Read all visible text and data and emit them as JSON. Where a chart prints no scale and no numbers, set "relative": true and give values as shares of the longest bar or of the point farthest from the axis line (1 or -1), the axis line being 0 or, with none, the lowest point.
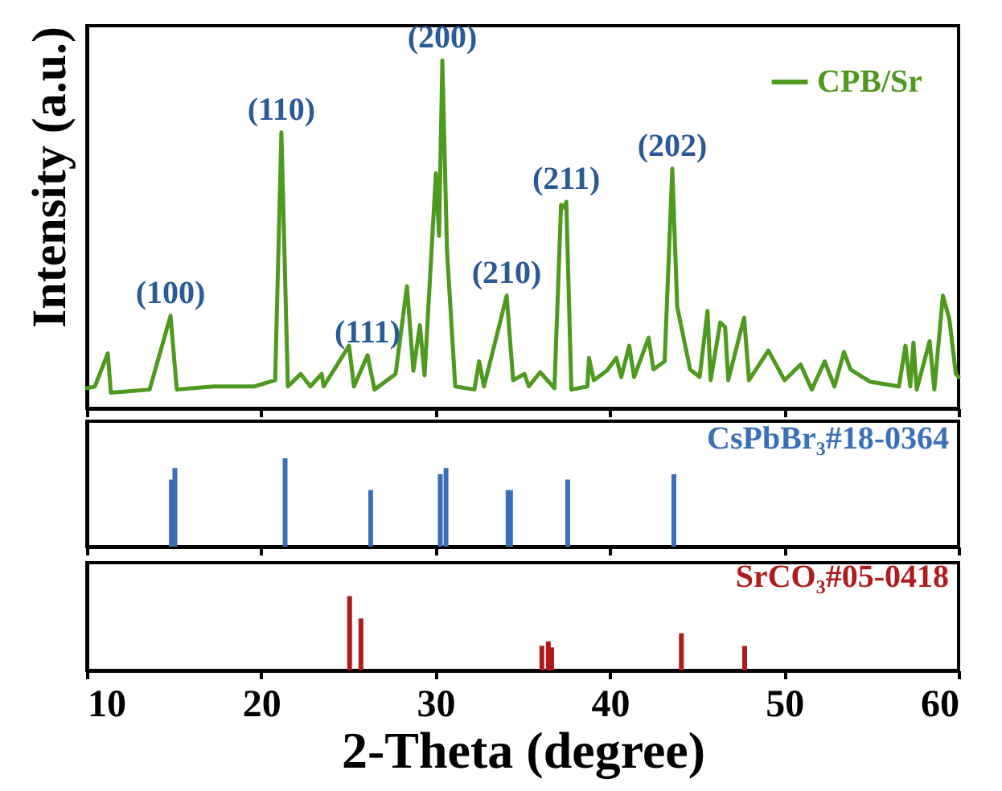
{
  "chart_data": [
    {
      "type": "line",
      "relative": true,
      "ylabel": "Intensity (a.u.)",
      "xlim": [
        10,
        60
      ],
      "xticks": [
        10,
        20,
        30,
        40,
        50,
        60
      ],
      "tick_labels": false,
      "legend": "top right",
      "series": [
        {
          "name": "CPB/Sr",
          "color": "#4e9a1f",
          "x": [
            10.0,
            10.46,
            11.2,
            11.38,
            13.6,
            14.8,
            15.16,
            17.3,
            19.6,
            20.8,
            21.16,
            21.53,
            22.27,
            22.82,
            23.47,
            23.58,
            25.04,
            25.32,
            26.1,
            26.5,
            27.71,
            28.36,
            28.73,
            29.1,
            29.37,
            30.02,
            30.2,
            30.39,
            30.66,
            31.13,
            32.23,
            32.5,
            32.78,
            34.08,
            34.45,
            35.1,
            35.35,
            36.0,
            36.82,
            37.2,
            37.38,
            37.5,
            37.79,
            38.71,
            38.8,
            39.08,
            39.82,
            40.37,
            40.65,
            41.11,
            41.39,
            42.22,
            42.5,
            43.14,
            43.58,
            43.86,
            44.6,
            45.15,
            45.6,
            45.78,
            46.33,
            46.61,
            46.79,
            47.7,
            47.98,
            49.09,
            50.02,
            50.94,
            51.58,
            52.32,
            52.88,
            53.43,
            53.8,
            54.9,
            56.58,
            56.95,
            57.23,
            57.41,
            57.6,
            58.34,
            58.61,
            59.1,
            59.47,
            59.84,
            60.0
          ],
          "values": [
            0.058,
            0.063,
            0.158,
            0.045,
            0.054,
            0.266,
            0.054,
            0.063,
            0.063,
            0.081,
            0.793,
            0.063,
            0.099,
            0.063,
            0.099,
            0.063,
            0.18,
            0.063,
            0.153,
            0.054,
            0.099,
            0.351,
            0.108,
            0.239,
            0.095,
            0.676,
            0.496,
            1.0,
            0.45,
            0.063,
            0.054,
            0.135,
            0.063,
            0.324,
            0.081,
            0.099,
            0.063,
            0.104,
            0.058,
            0.585,
            0.577,
            0.594,
            0.054,
            0.063,
            0.145,
            0.081,
            0.108,
            0.145,
            0.09,
            0.18,
            0.09,
            0.203,
            0.112,
            0.135,
            0.689,
            0.293,
            0.112,
            0.09,
            0.28,
            0.081,
            0.247,
            0.234,
            0.081,
            0.261,
            0.081,
            0.166,
            0.081,
            0.126,
            0.054,
            0.135,
            0.063,
            0.162,
            0.112,
            0.077,
            0.063,
            0.18,
            0.063,
            0.189,
            0.054,
            0.193,
            0.054,
            0.324,
            0.257,
            0.099,
            0.09
          ]
        }
      ],
      "annotations": [
        {
          "text": "(100)",
          "x": 14.8,
          "y": 0.266
        },
        {
          "text": "(110)",
          "x": 21.16,
          "y": 0.793
        },
        {
          "text": "(111)",
          "x": 26.1,
          "y": 0.153
        },
        {
          "text": "(200)",
          "x": 30.39,
          "y": 1.0
        },
        {
          "text": "(210)",
          "x": 34.08,
          "y": 0.324
        },
        {
          "text": "(211)",
          "x": 37.5,
          "y": 0.594
        },
        {
          "text": "(202)",
          "x": 43.58,
          "y": 0.689
        }
      ]
    },
    {
      "type": "bar",
      "relative": true,
      "xlim": [
        10,
        60
      ],
      "xticks": [
        10,
        20,
        30,
        40,
        50,
        60
      ],
      "tick_labels": false,
      "series": [
        {
          "name": "CsPbBr₃#18-0364",
          "color": "#3a70b8",
          "x": [
            14.85,
            15.05,
            21.37,
            26.28,
            30.27,
            30.6,
            34.16,
            34.3,
            37.58,
            43.67
          ],
          "values": [
            0.76,
            0.89,
            1.0,
            0.64,
            0.82,
            0.89,
            0.64,
            0.64,
            0.76,
            0.82
          ]
        }
      ]
    },
    {
      "type": "bar",
      "relative": true,
      "xlabel": "2-Theta (degree)",
      "xlim": [
        10,
        60
      ],
      "xticks": [
        10,
        20,
        30,
        40,
        50,
        60
      ],
      "tick_labels": "x",
      "series": [
        {
          "name": "SrCO₃#05-0418",
          "color": "#b01c1c",
          "x": [
            25.07,
            25.72,
            36.1,
            36.47,
            36.66,
            44.1,
            47.73
          ],
          "values": [
            1.0,
            0.7,
            0.33,
            0.39,
            0.31,
            0.5,
            0.33
          ]
        }
      ]
    }
  ]
}
